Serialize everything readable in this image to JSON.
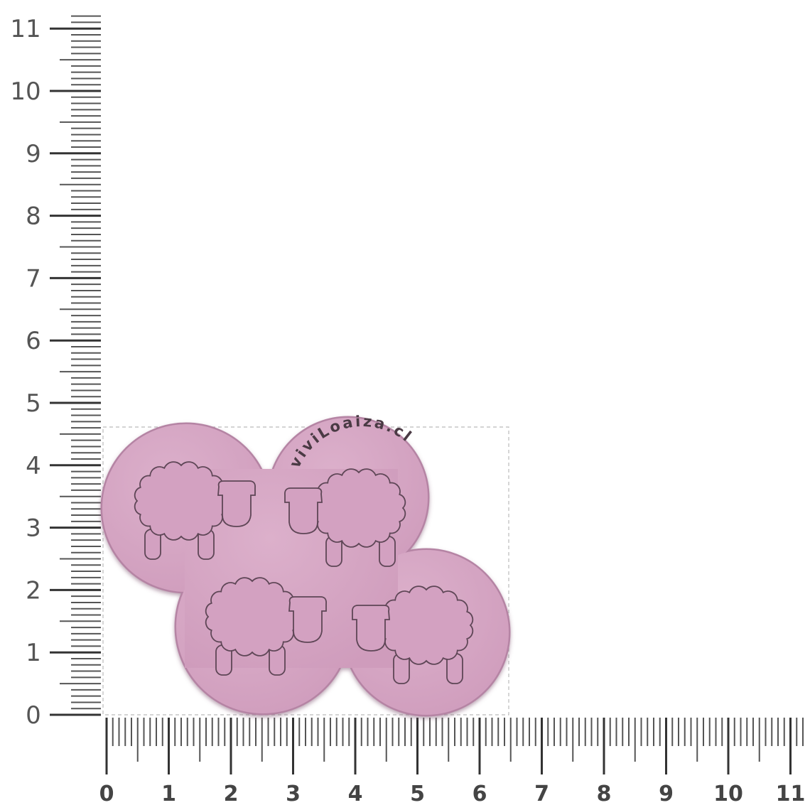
{
  "ruler": {
    "unit_ticks_per_major": 10,
    "vertical_labels": [
      "0",
      "1",
      "2",
      "3",
      "4",
      "5",
      "6",
      "7",
      "8",
      "9",
      "10",
      "11"
    ],
    "horizontal_labels": [
      "0",
      "1",
      "2",
      "3",
      "4",
      "5",
      "6",
      "7",
      "8",
      "9",
      "10",
      "11"
    ],
    "color": "#333333"
  },
  "product": {
    "brand_text": "viviLoaiza.cl",
    "width_units": 6.5,
    "height_units": 4.6,
    "sheep_count": 4,
    "mold_color": "#d9a9c7",
    "outline_color": "#a87b97"
  }
}
